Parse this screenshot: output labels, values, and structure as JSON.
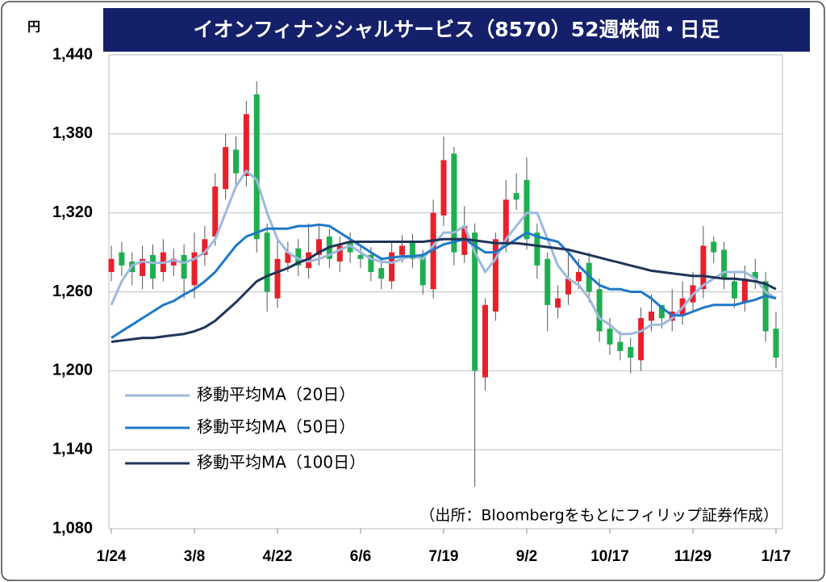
{
  "chart_data": {
    "type": "candlestick",
    "title": "イオンフィナンシャルサービス（8570）52週株価・日足",
    "y_unit": "円",
    "note": "（出所：Bloombergをもとにフィリップ証券作成）",
    "categories": [
      "1/24",
      null,
      null,
      null,
      null,
      null,
      null,
      null,
      "3/8",
      null,
      null,
      null,
      null,
      null,
      null,
      null,
      "4/22",
      null,
      null,
      null,
      null,
      null,
      null,
      null,
      "6/6",
      null,
      null,
      null,
      null,
      null,
      null,
      null,
      "7/19",
      null,
      null,
      null,
      null,
      null,
      null,
      null,
      "9/2",
      null,
      null,
      null,
      null,
      null,
      null,
      null,
      "10/17",
      null,
      null,
      null,
      null,
      null,
      null,
      null,
      "11/29",
      null,
      null,
      null,
      null,
      null,
      null,
      null,
      "1/17"
    ],
    "open": [
      1275,
      1290,
      1283,
      1272,
      1288,
      1275,
      1280,
      1288,
      1265,
      1288,
      1302,
      1338,
      1368,
      1348,
      1410,
      1305,
      1255,
      1282,
      1293,
      1278,
      1288,
      1302,
      1283,
      1298,
      1288,
      1288,
      1278,
      1268,
      1288,
      1298,
      1288,
      1262,
      1318,
      1365,
      1288,
      1305,
      1195,
      1245,
      1298,
      1335,
      1345,
      1305,
      1285,
      1248,
      1258,
      1268,
      1282,
      1262,
      1232,
      1222,
      1218,
      1208,
      1238,
      1250,
      1238,
      1242,
      1252,
      1262,
      1298,
      1292,
      1268,
      1252,
      1275,
      1268,
      1232
    ],
    "high": [
      1295,
      1298,
      1290,
      1295,
      1296,
      1300,
      1293,
      1296,
      1305,
      1310,
      1350,
      1380,
      1378,
      1405,
      1420,
      1312,
      1300,
      1298,
      1300,
      1312,
      1310,
      1308,
      1302,
      1305,
      1296,
      1294,
      1285,
      1298,
      1303,
      1304,
      1292,
      1330,
      1378,
      1370,
      1325,
      1312,
      1255,
      1305,
      1345,
      1350,
      1362,
      1312,
      1290,
      1265,
      1290,
      1285,
      1290,
      1270,
      1240,
      1230,
      1225,
      1248,
      1258,
      1248,
      1262,
      1268,
      1275,
      1310,
      1302,
      1298,
      1275,
      1280,
      1285,
      1275,
      1245
    ],
    "low": [
      1268,
      1272,
      1265,
      1262,
      1262,
      1268,
      1272,
      1255,
      1255,
      1280,
      1295,
      1330,
      1340,
      1340,
      1290,
      1245,
      1248,
      1275,
      1272,
      1270,
      1280,
      1278,
      1275,
      1282,
      1278,
      1268,
      1262,
      1262,
      1282,
      1278,
      1258,
      1255,
      1310,
      1280,
      1282,
      1112,
      1185,
      1238,
      1290,
      1322,
      1292,
      1270,
      1230,
      1240,
      1250,
      1262,
      1252,
      1222,
      1212,
      1208,
      1198,
      1200,
      1230,
      1232,
      1230,
      1235,
      1245,
      1255,
      1282,
      1262,
      1248,
      1245,
      1262,
      1222,
      1202
    ],
    "close": [
      1285,
      1280,
      1275,
      1285,
      1270,
      1290,
      1285,
      1270,
      1290,
      1300,
      1340,
      1370,
      1350,
      1395,
      1300,
      1260,
      1285,
      1290,
      1280,
      1290,
      1300,
      1285,
      1295,
      1290,
      1285,
      1275,
      1270,
      1290,
      1295,
      1285,
      1265,
      1320,
      1360,
      1290,
      1310,
      1200,
      1250,
      1300,
      1330,
      1330,
      1300,
      1280,
      1250,
      1255,
      1270,
      1275,
      1260,
      1230,
      1220,
      1215,
      1210,
      1240,
      1245,
      1240,
      1245,
      1255,
      1265,
      1295,
      1290,
      1270,
      1255,
      1270,
      1270,
      1230,
      1210
    ],
    "up_color": "#e8202a",
    "down_color": "#1fae4f",
    "series": [
      {
        "name": "移動平均MA（20日）",
        "color": "#9db9dc",
        "values": [
          1250,
          1268,
          1280,
          1283,
          1282,
          1282,
          1284,
          1282,
          1285,
          1290,
          1300,
          1320,
          1340,
          1352,
          1345,
          1320,
          1300,
          1290,
          1285,
          1283,
          1285,
          1288,
          1292,
          1295,
          1290,
          1285,
          1283,
          1282,
          1285,
          1287,
          1285,
          1295,
          1305,
          1305,
          1310,
          1290,
          1275,
          1285,
          1300,
          1310,
          1320,
          1320,
          1300,
          1280,
          1270,
          1265,
          1255,
          1240,
          1235,
          1228,
          1228,
          1230,
          1235,
          1235,
          1240,
          1248,
          1258,
          1265,
          1270,
          1275,
          1275,
          1275,
          1270,
          1260,
          1255
        ]
      },
      {
        "name": "移動平均MA（50日）",
        "color": "#1f78c8",
        "values": [
          1225,
          1230,
          1235,
          1240,
          1245,
          1250,
          1253,
          1258,
          1262,
          1268,
          1275,
          1285,
          1295,
          1302,
          1305,
          1308,
          1308,
          1308,
          1310,
          1310,
          1311,
          1310,
          1305,
          1300,
          1295,
          1290,
          1285,
          1286,
          1287,
          1287,
          1288,
          1292,
          1296,
          1298,
          1300,
          1295,
          1290,
          1290,
          1295,
          1300,
          1305,
          1302,
          1300,
          1298,
          1290,
          1280,
          1272,
          1265,
          1262,
          1262,
          1260,
          1260,
          1255,
          1248,
          1242,
          1242,
          1245,
          1248,
          1250,
          1250,
          1250,
          1252,
          1254,
          1257,
          1255
        ]
      },
      {
        "name": "移動平均MA（100日）",
        "color": "#1f3458",
        "values": [
          1222,
          1223,
          1224,
          1225,
          1225,
          1226,
          1227,
          1228,
          1230,
          1233,
          1238,
          1245,
          1252,
          1260,
          1268,
          1272,
          1275,
          1278,
          1282,
          1285,
          1290,
          1294,
          1296,
          1298,
          1298,
          1298,
          1298,
          1298,
          1298,
          1298,
          1298,
          1299,
          1300,
          1300,
          1300,
          1299,
          1298,
          1297,
          1297,
          1297,
          1296,
          1295,
          1294,
          1293,
          1292,
          1290,
          1288,
          1286,
          1284,
          1282,
          1280,
          1278,
          1276,
          1275,
          1274,
          1273,
          1272,
          1272,
          1271,
          1270,
          1270,
          1269,
          1268,
          1266,
          1262
        ]
      }
    ],
    "ylim": [
      1080,
      1440
    ],
    "yticks": [
      {
        "value": 1080,
        "label": "1,080"
      },
      {
        "value": 1140,
        "label": "1,140"
      },
      {
        "value": 1200,
        "label": "1,200"
      },
      {
        "value": 1260,
        "label": "1,260"
      },
      {
        "value": 1320,
        "label": "1,320"
      },
      {
        "value": 1380,
        "label": "1,380"
      },
      {
        "value": 1440,
        "label": "1,440"
      }
    ],
    "grid": true,
    "legend": "lower left"
  }
}
